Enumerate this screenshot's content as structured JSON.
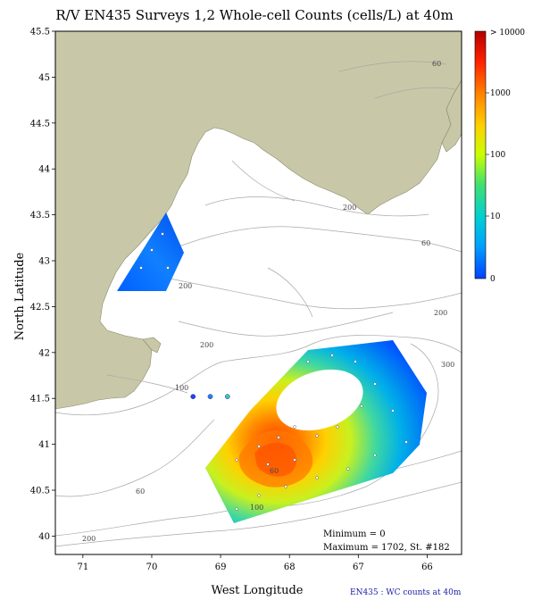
{
  "title": "R/V EN435 Surveys 1,2 Whole-cell Counts (cells/L) at 40m",
  "axes": {
    "xlabel": "West Longitude",
    "ylabel": "North Latitude",
    "xticks": [
      "71",
      "70",
      "69",
      "68",
      "67",
      "66"
    ],
    "yticks": [
      "45.5",
      "45",
      "44.5",
      "44",
      "43.5",
      "43",
      "42.5",
      "42",
      "41.5",
      "41",
      "40.5",
      "40"
    ],
    "xlim": [
      71.4,
      65.5
    ],
    "ylim": [
      39.8,
      45.5
    ]
  },
  "colorbar": {
    "labels": [
      "> 10000",
      "1000",
      "100",
      "10",
      "0"
    ],
    "colors": [
      "#b40000",
      "#ff2000",
      "#ff8000",
      "#ffd000",
      "#c8ff00",
      "#40e070",
      "#00d0d0",
      "#00a0ff",
      "#0040ff"
    ]
  },
  "contour_labels": [
    "60",
    "200",
    "200",
    "60",
    "200",
    "100",
    "200",
    "300",
    "60",
    "60",
    "100",
    "200"
  ],
  "stats": {
    "minimum": "Minimum = 0",
    "maximum": "Maximum = 1702, St. #182"
  },
  "footer": "EN435 : WC counts at 40m",
  "colors": {
    "land": "#c8c8a8",
    "contour": "#a0a0a0",
    "sea": "#ffffff"
  },
  "stations_outside": [
    {
      "lon": 69.4,
      "lat": 41.52,
      "color": "#2040ff"
    },
    {
      "lon": 69.15,
      "lat": 41.52,
      "color": "#2080ff"
    },
    {
      "lon": 68.9,
      "lat": 41.52,
      "color": "#40c0d0"
    }
  ]
}
